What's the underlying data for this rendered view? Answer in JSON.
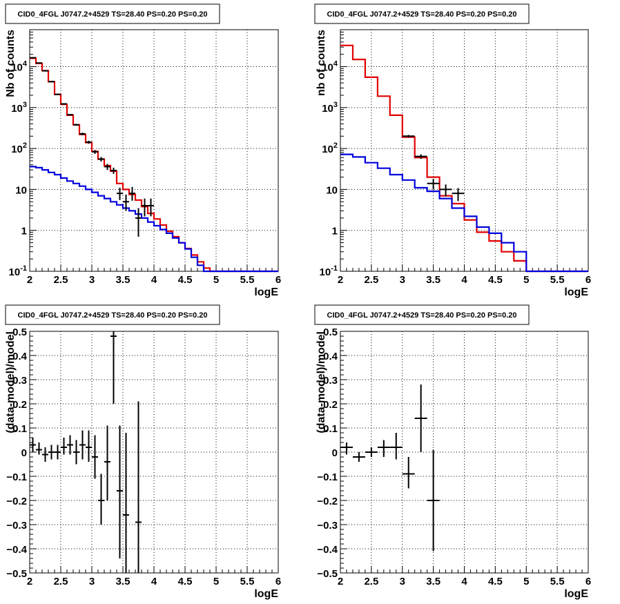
{
  "chart_data": [
    {
      "type": "line",
      "panel": "top-left",
      "title": "CID0_4FGL J0747.2+4529 TS=28.40 PS=0.20 PS=0.20",
      "xlabel": "logE",
      "ylabel": "Nb of counts",
      "xlim": [
        2,
        6
      ],
      "ylim": [
        0.1,
        80000
      ],
      "y_scale": "log",
      "grid": true,
      "x_ticks": [
        2,
        2.5,
        3,
        3.5,
        4,
        4.5,
        5,
        5.5,
        6
      ],
      "x_tick_labels": [
        "2",
        "2.5",
        "3",
        "3.5",
        "4",
        "4.5",
        "5",
        "5.5",
        "6"
      ],
      "y_ticks": [
        0.1,
        1,
        10,
        100,
        1000,
        10000
      ],
      "y_tick_labels": [
        "10^-1",
        "1",
        "10",
        "10^2",
        "10^3",
        "10^4"
      ],
      "bin_edges": [
        2.0,
        2.1,
        2.2,
        2.3,
        2.4,
        2.5,
        2.6,
        2.7,
        2.8,
        2.9,
        3.0,
        3.1,
        3.2,
        3.3,
        3.4,
        3.5,
        3.6,
        3.7,
        3.8,
        3.9,
        4.0,
        4.1,
        4.2,
        4.3,
        4.4,
        4.5,
        4.6,
        4.7,
        4.8,
        4.9,
        5.0,
        5.1,
        5.2,
        5.3,
        5.4,
        5.5,
        5.6,
        5.7,
        5.8,
        5.9,
        6.0
      ],
      "series": [
        {
          "name": "",
          "color": "#e00000",
          "step": true,
          "values": [
            16000,
            12000,
            8000,
            4300,
            2100,
            1200,
            650,
            380,
            220,
            140,
            85,
            55,
            38,
            28,
            14,
            10,
            7.5,
            5.5,
            3.8,
            2.6,
            1.9,
            1.35,
            0.95,
            0.7,
            0.5,
            0.36,
            0.25,
            0.17,
            0.12,
            0.1,
            0.1,
            0.1,
            0.1,
            0.1,
            0.1,
            0.1,
            0.1,
            0.1,
            0.1,
            0.1
          ]
        },
        {
          "name": "",
          "color": "#0000dd",
          "step": true,
          "values": [
            36,
            34,
            30,
            26,
            23,
            19,
            16,
            14,
            12,
            10,
            8.5,
            7,
            6,
            5,
            4.2,
            3.5,
            3,
            2.5,
            2,
            1.6,
            1.3,
            1.05,
            0.85,
            0.65,
            0.5,
            0.35,
            0.22,
            0.14,
            0.1,
            0.1,
            0.1,
            0.1,
            0.1,
            0.1,
            0.1,
            0.1,
            0.1,
            0.1,
            0.1,
            0.1
          ]
        }
      ],
      "points": [
        {
          "x": 2.05,
          "y": 16500,
          "xerr": 0.05,
          "ylo": 16300,
          "yhi": 16700
        },
        {
          "x": 2.15,
          "y": 12300,
          "xerr": 0.05,
          "ylo": 12100,
          "yhi": 12500
        },
        {
          "x": 2.25,
          "y": 7900,
          "xerr": 0.05,
          "ylo": 7800,
          "yhi": 8000
        },
        {
          "x": 2.35,
          "y": 4300,
          "xerr": 0.05,
          "ylo": 4250,
          "yhi": 4350
        },
        {
          "x": 2.45,
          "y": 2100,
          "xerr": 0.05,
          "ylo": 2050,
          "yhi": 2150
        },
        {
          "x": 2.55,
          "y": 1230,
          "xerr": 0.05,
          "ylo": 1200,
          "yhi": 1260
        },
        {
          "x": 2.65,
          "y": 670,
          "xerr": 0.05,
          "ylo": 650,
          "yhi": 690
        },
        {
          "x": 2.75,
          "y": 380,
          "xerr": 0.05,
          "ylo": 360,
          "yhi": 400
        },
        {
          "x": 2.85,
          "y": 228,
          "xerr": 0.05,
          "ylo": 212,
          "yhi": 244
        },
        {
          "x": 2.95,
          "y": 143,
          "xerr": 0.05,
          "ylo": 131,
          "yhi": 155
        },
        {
          "x": 3.05,
          "y": 83,
          "xerr": 0.05,
          "ylo": 74,
          "yhi": 92
        },
        {
          "x": 3.15,
          "y": 55,
          "xerr": 0.05,
          "ylo": 48,
          "yhi": 62
        },
        {
          "x": 3.25,
          "y": 36,
          "xerr": 0.05,
          "ylo": 30,
          "yhi": 42
        },
        {
          "x": 3.35,
          "y": 29,
          "xerr": 0.05,
          "ylo": 24,
          "yhi": 34
        },
        {
          "x": 3.45,
          "y": 8,
          "xerr": 0.05,
          "ylo": 5.5,
          "yhi": 11
        },
        {
          "x": 3.55,
          "y": 5,
          "xerr": 0.05,
          "ylo": 3,
          "yhi": 7.5
        },
        {
          "x": 3.65,
          "y": 8,
          "xerr": 0.05,
          "ylo": 5.3,
          "yhi": 11.5
        },
        {
          "x": 3.75,
          "y": 2,
          "xerr": 0.05,
          "ylo": 0.7,
          "yhi": 3.5
        },
        {
          "x": 3.85,
          "y": 4,
          "xerr": 0.05,
          "ylo": 2.2,
          "yhi": 6
        },
        {
          "x": 3.95,
          "y": 4,
          "xerr": 0.05,
          "ylo": 2.2,
          "yhi": 6
        }
      ]
    },
    {
      "type": "line",
      "panel": "top-right",
      "title": "CID0_4FGL J0747.2+4529 TS=28.40 PS=0.20 PS=0.20",
      "xlabel": "logE",
      "ylabel": "nb of counts",
      "xlim": [
        2,
        6
      ],
      "ylim": [
        0.1,
        80000
      ],
      "y_scale": "log",
      "grid": true,
      "x_ticks": [
        2,
        2.5,
        3,
        3.5,
        4,
        4.5,
        5,
        5.5,
        6
      ],
      "x_tick_labels": [
        "2",
        "2.5",
        "3",
        "3.5",
        "4",
        "4.5",
        "5",
        "5.5",
        "6"
      ],
      "y_ticks": [
        0.1,
        1,
        10,
        100,
        1000,
        10000
      ],
      "y_tick_labels": [
        "10^-1",
        "1",
        "10",
        "10^2",
        "10^3",
        "10^4"
      ],
      "bin_edges": [
        2.0,
        2.2,
        2.4,
        2.6,
        2.8,
        3.0,
        3.2,
        3.4,
        3.6,
        3.8,
        4.0,
        4.2,
        4.4,
        4.6,
        4.8,
        5.0,
        5.2,
        5.4,
        5.6,
        5.8,
        6.0
      ],
      "series": [
        {
          "name": "",
          "color": "#e00000",
          "step": true,
          "values": [
            33000,
            15000,
            5500,
            1900,
            650,
            190,
            60,
            20,
            7,
            4.5,
            1.8,
            0.9,
            0.55,
            0.3,
            0.18,
            0.1,
            0.1,
            0.1,
            0.1,
            0.1
          ]
        },
        {
          "name": "",
          "color": "#0000dd",
          "step": true,
          "values": [
            72,
            62,
            45,
            33,
            23,
            17,
            11,
            9,
            6,
            3.5,
            2.2,
            1.2,
            0.85,
            0.5,
            0.3,
            0.1,
            0.1,
            0.1,
            0.1,
            0.1
          ]
        }
      ],
      "points": [
        {
          "x": 3.1,
          "y": 200,
          "xerr": 0.1,
          "ylo": 186,
          "yhi": 214
        },
        {
          "x": 3.3,
          "y": 64,
          "xerr": 0.1,
          "ylo": 56,
          "yhi": 72
        },
        {
          "x": 3.5,
          "y": 14,
          "xerr": 0.1,
          "ylo": 10,
          "yhi": 18
        },
        {
          "x": 3.7,
          "y": 10,
          "xerr": 0.1,
          "ylo": 6.8,
          "yhi": 13.2
        },
        {
          "x": 3.9,
          "y": 8,
          "xerr": 0.1,
          "ylo": 5.2,
          "yhi": 10.8
        }
      ]
    },
    {
      "type": "scatter",
      "panel": "bottom-left",
      "title": "CID0_4FGL J0747.2+4529 TS=28.40 PS=0.20 PS=0.20",
      "xlabel": "logE",
      "ylabel": "(data-model)/model",
      "xlim": [
        2,
        6
      ],
      "ylim": [
        -0.5,
        0.5
      ],
      "y_scale": "linear",
      "grid": true,
      "x_ticks": [
        2,
        2.5,
        3,
        3.5,
        4,
        4.5,
        5,
        5.5,
        6
      ],
      "x_tick_labels": [
        "2",
        "2.5",
        "3",
        "3.5",
        "4",
        "4.5",
        "5",
        "5.5",
        "6"
      ],
      "y_ticks": [
        -0.5,
        -0.4,
        -0.3,
        -0.2,
        -0.1,
        0,
        0.1,
        0.2,
        0.3,
        0.4,
        0.5
      ],
      "y_tick_labels": [
        "−0.5",
        "−0.4",
        "−0.3",
        "−0.2",
        "−0.1",
        "0",
        "0.1",
        "0.2",
        "0.3",
        "0.4",
        "0.5"
      ],
      "points": [
        {
          "x": 2.05,
          "y": 0.03,
          "xerr": 0.05,
          "ylo": 0.0,
          "yhi": 0.06
        },
        {
          "x": 2.15,
          "y": 0.01,
          "xerr": 0.05,
          "ylo": -0.01,
          "yhi": 0.04
        },
        {
          "x": 2.25,
          "y": -0.01,
          "xerr": 0.05,
          "ylo": -0.04,
          "yhi": 0.02
        },
        {
          "x": 2.35,
          "y": 0.0,
          "xerr": 0.05,
          "ylo": -0.03,
          "yhi": 0.03
        },
        {
          "x": 2.45,
          "y": 0.0,
          "xerr": 0.05,
          "ylo": -0.03,
          "yhi": 0.03
        },
        {
          "x": 2.55,
          "y": 0.02,
          "xerr": 0.05,
          "ylo": -0.01,
          "yhi": 0.06
        },
        {
          "x": 2.65,
          "y": 0.03,
          "xerr": 0.05,
          "ylo": -0.01,
          "yhi": 0.07
        },
        {
          "x": 2.75,
          "y": 0.0,
          "xerr": 0.05,
          "ylo": -0.05,
          "yhi": 0.05
        },
        {
          "x": 2.85,
          "y": 0.03,
          "xerr": 0.05,
          "ylo": -0.03,
          "yhi": 0.09
        },
        {
          "x": 2.95,
          "y": 0.02,
          "xerr": 0.05,
          "ylo": -0.04,
          "yhi": 0.09
        },
        {
          "x": 3.05,
          "y": -0.02,
          "xerr": 0.05,
          "ylo": -0.11,
          "yhi": 0.07
        },
        {
          "x": 3.15,
          "y": -0.2,
          "xerr": 0.05,
          "ylo": -0.3,
          "yhi": -0.09
        },
        {
          "x": 3.25,
          "y": -0.04,
          "xerr": 0.05,
          "ylo": -0.2,
          "yhi": 0.11
        },
        {
          "x": 3.35,
          "y": 0.48,
          "xerr": 0.05,
          "ylo": 0.2,
          "yhi": 0.5
        },
        {
          "x": 3.45,
          "y": -0.16,
          "xerr": 0.05,
          "ylo": -0.44,
          "yhi": 0.11
        },
        {
          "x": 3.55,
          "y": -0.26,
          "xerr": 0.05,
          "ylo": -0.5,
          "yhi": 0.08
        },
        {
          "x": 3.75,
          "y": -0.29,
          "xerr": 0.05,
          "ylo": -0.5,
          "yhi": 0.21
        }
      ]
    },
    {
      "type": "scatter",
      "panel": "bottom-right",
      "title": "CID0_4FGL J0747.2+4529 TS=28.40 PS=0.20 PS=0.20",
      "xlabel": "logE",
      "ylabel": "(data-model)/model",
      "xlim": [
        2,
        6
      ],
      "ylim": [
        -0.5,
        0.5
      ],
      "y_scale": "linear",
      "grid": true,
      "x_ticks": [
        2,
        2.5,
        3,
        3.5,
        4,
        4.5,
        5,
        5.5,
        6
      ],
      "x_tick_labels": [
        "2",
        "2.5",
        "3",
        "3.5",
        "4",
        "4.5",
        "5",
        "5.5",
        "6"
      ],
      "y_ticks": [
        -0.5,
        -0.4,
        -0.3,
        -0.2,
        -0.1,
        0,
        0.1,
        0.2,
        0.3,
        0.4,
        0.5
      ],
      "y_tick_labels": [
        "−0.5",
        "−0.4",
        "−0.3",
        "−0.2",
        "−0.1",
        "0",
        "0.1",
        "0.2",
        "0.3",
        "0.4",
        "0.5"
      ],
      "points": [
        {
          "x": 2.1,
          "y": 0.02,
          "xerr": 0.1,
          "ylo": -0.01,
          "yhi": 0.04
        },
        {
          "x": 2.3,
          "y": -0.02,
          "xerr": 0.1,
          "ylo": -0.04,
          "yhi": 0.0
        },
        {
          "x": 2.5,
          "y": 0.0,
          "xerr": 0.1,
          "ylo": -0.02,
          "yhi": 0.02
        },
        {
          "x": 2.7,
          "y": 0.02,
          "xerr": 0.1,
          "ylo": -0.02,
          "yhi": 0.05
        },
        {
          "x": 2.9,
          "y": 0.02,
          "xerr": 0.1,
          "ylo": -0.03,
          "yhi": 0.08
        },
        {
          "x": 3.1,
          "y": -0.09,
          "xerr": 0.1,
          "ylo": -0.15,
          "yhi": -0.02
        },
        {
          "x": 3.3,
          "y": 0.14,
          "xerr": 0.1,
          "ylo": 0.0,
          "yhi": 0.28
        },
        {
          "x": 3.5,
          "y": -0.2,
          "xerr": 0.1,
          "ylo": -0.41,
          "yhi": 0.01
        }
      ]
    }
  ]
}
